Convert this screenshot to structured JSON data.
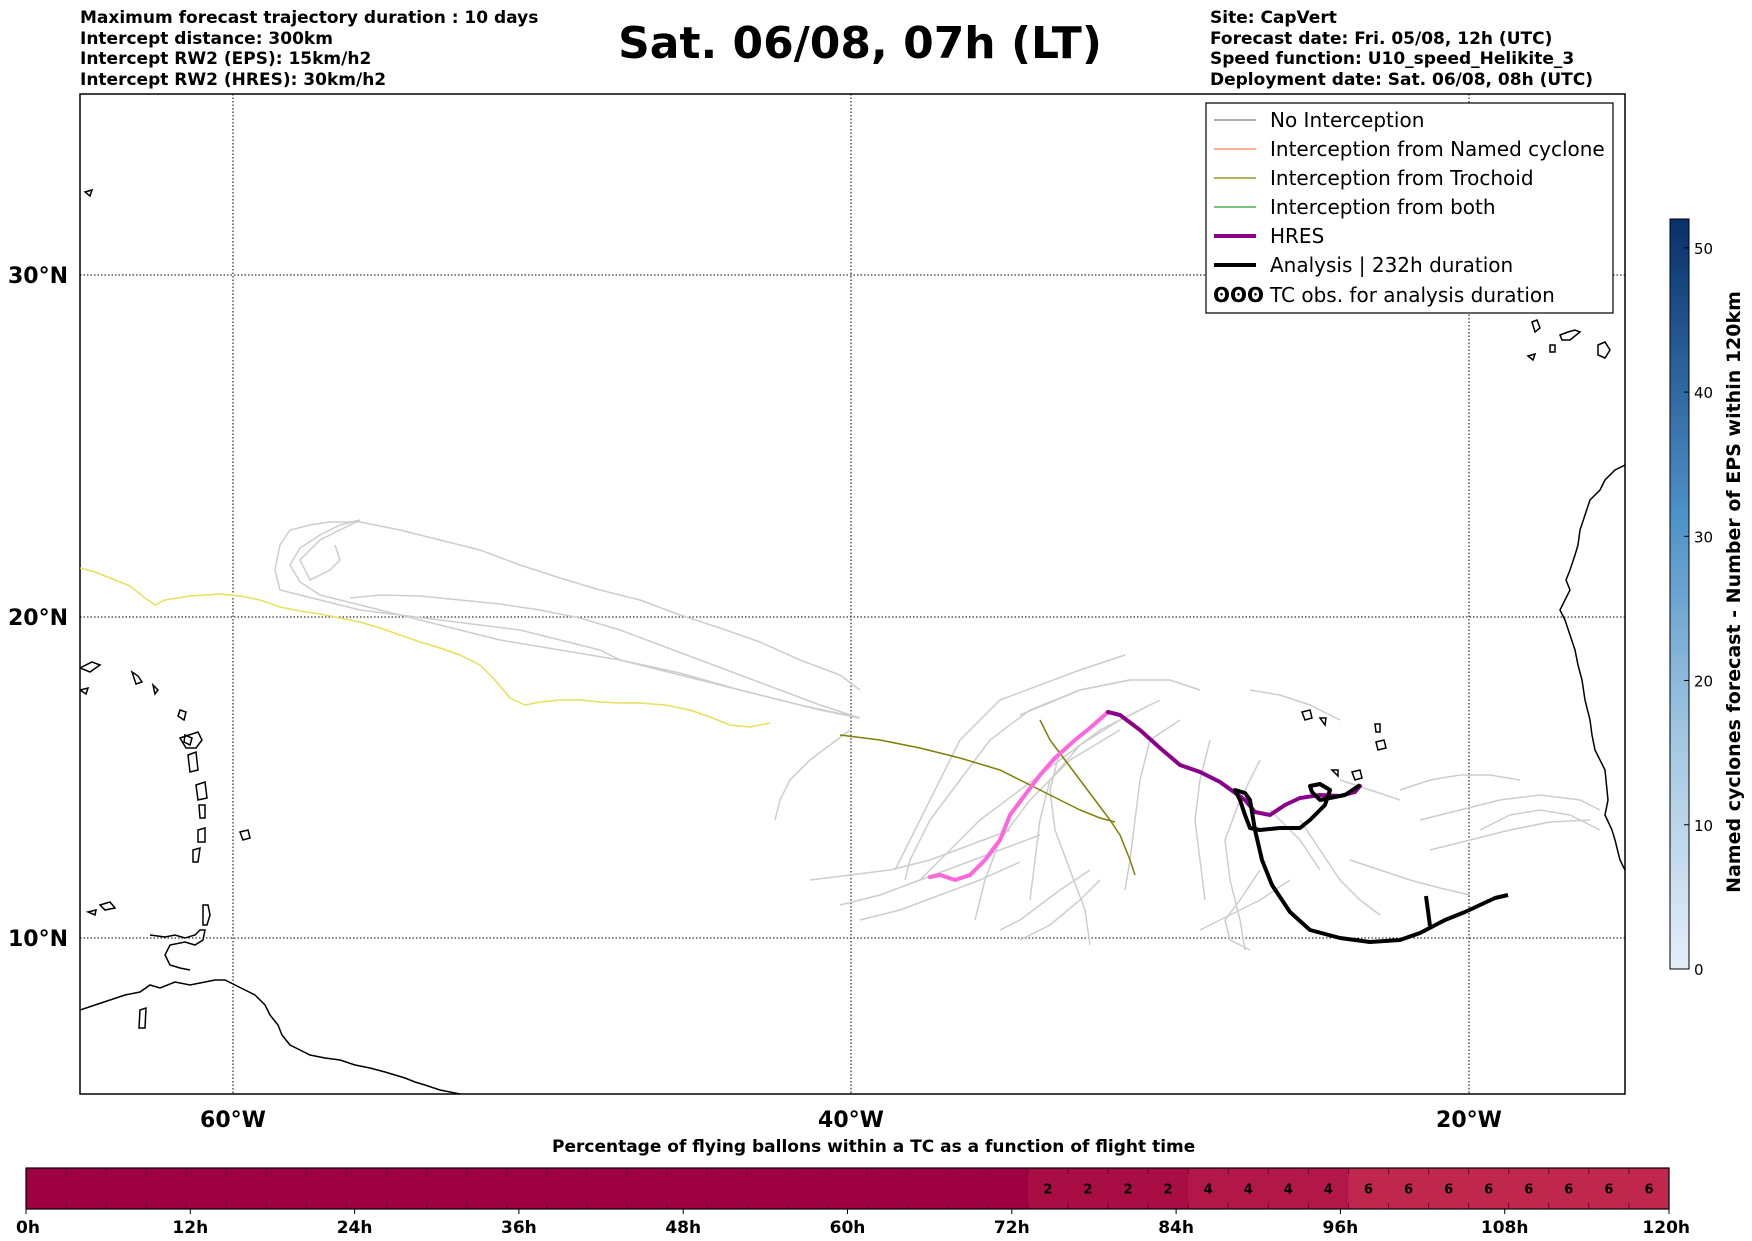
{
  "header": {
    "left": [
      "Maximum forecast trajectory duration : 10 days",
      "Intercept distance: 300km",
      "Intercept RW2 (EPS):  15km/h2",
      "Intercept RW2 (HRES): 30km/h2"
    ],
    "title": "Sat. 06/08, 07h (LT)",
    "right": [
      "Site: CapVert",
      "Forecast date: Fri. 05/08, 12h (UTC)",
      "Speed function: U10_speed_Helikite_3",
      "Deployment date: Sat. 06/08, 08h (UTC)"
    ]
  },
  "map": {
    "lat_labels": [
      "30°N",
      "20°N",
      "10°N"
    ],
    "lon_labels": [
      "60°W",
      "40°W",
      "20°W"
    ],
    "lat_values": [
      30,
      20,
      10
    ],
    "lon_values": [
      -60,
      -40,
      -20
    ],
    "extent": {
      "lon_min": -65,
      "lon_max": -15,
      "lat_min": 5.5,
      "lat_max": 34.7
    }
  },
  "legend": {
    "items": [
      {
        "label": "No Interception",
        "color": "#808080",
        "style": "thin-line"
      },
      {
        "label": "Interception from Named cyclone",
        "color": "#ff7f50",
        "style": "thin-line"
      },
      {
        "label": "Interception from Trochoid",
        "color": "#808000",
        "style": "thin-line"
      },
      {
        "label": "Interception from both",
        "color": "#2ca02c",
        "style": "thin-line"
      },
      {
        "label": "HRES",
        "color": "#8b008b",
        "style": "thick-line"
      },
      {
        "label": "Analysis | 232h duration",
        "color": "#000000",
        "style": "thick-line"
      },
      {
        "label": "TC obs. for analysis duration",
        "color": "#000000",
        "style": "tc-symbols",
        "symbol": "ʘʘʘ"
      }
    ]
  },
  "colorbar_vertical": {
    "label": "Named cyclones forecast - Number of EPS within 120km",
    "ticks": [
      "0",
      "10",
      "20",
      "30",
      "40",
      "50"
    ],
    "range": [
      0,
      52
    ],
    "color_low": "#e4eef9",
    "color_high": "#08306b"
  },
  "colorbar_horizontal": {
    "title": "Percentage of flying ballons within a TC as a function of flight time",
    "ticks": [
      "0h",
      "12h",
      "24h",
      "36h",
      "48h",
      "60h",
      "72h",
      "84h",
      "96h",
      "108h",
      "120h"
    ],
    "hours": [
      0,
      12,
      24,
      36,
      48,
      60,
      72,
      84,
      96,
      108,
      120
    ],
    "bins_per_hour": 3,
    "percent_by_bin": [
      0,
      0,
      0,
      0,
      0,
      0,
      0,
      0,
      0,
      0,
      0,
      0,
      0,
      0,
      0,
      0,
      0,
      0,
      0,
      0,
      0,
      0,
      0,
      0,
      0,
      2,
      2,
      2,
      2,
      4,
      4,
      4,
      4,
      6,
      6,
      6,
      6,
      6,
      6,
      6,
      6
    ],
    "colors": {
      "0": "#9e0142",
      "2": "#a80d44",
      "4": "#b2174a",
      "6": "#c0274d"
    }
  },
  "colors": {
    "analysis": "#000000",
    "hres_forecast": "#8b008b",
    "hres_early": "#ff66dd",
    "eps_interacting": "#6e6e6e",
    "eps_light": "#cdcdcd",
    "eps_yellow": "#e8e05a",
    "trochoid": "#808000",
    "coastline": "#000000",
    "grid": "#000000"
  }
}
